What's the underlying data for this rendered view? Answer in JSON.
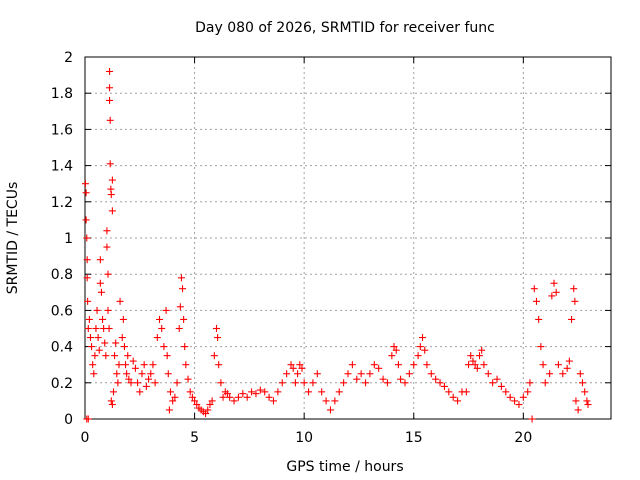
{
  "chart_data": {
    "type": "scatter",
    "title": "Day 080 of 2026, SRMTID for receiver func",
    "xlabel": "GPS time / hours",
    "ylabel": "SRMTID / TECUs",
    "xlim": [
      0,
      24
    ],
    "ylim": [
      0,
      2
    ],
    "xticks": [
      0,
      5,
      10,
      15,
      20
    ],
    "xtick_labels": [
      "0",
      "5",
      "10",
      "15",
      "20"
    ],
    "yticks": [
      0,
      0.2,
      0.4,
      0.6,
      0.8,
      1.0,
      1.2,
      1.4,
      1.6,
      1.8,
      2.0
    ],
    "ytick_labels": [
      "0",
      "0.2",
      "0.4",
      "0.6",
      "0.8",
      "1",
      "1.2",
      "1.4",
      "1.6",
      "1.8",
      "2"
    ],
    "grid": true,
    "marker": "plus",
    "marker_color": "#ff0000",
    "series": [
      {
        "name": "SRMTID",
        "points": [
          [
            0.02,
            1.3
          ],
          [
            0.05,
            1.25
          ],
          [
            0.05,
            1.1
          ],
          [
            0.08,
            1.0
          ],
          [
            0.1,
            0.88
          ],
          [
            0.1,
            0.78
          ],
          [
            0.12,
            0.65
          ],
          [
            0.15,
            0.5
          ],
          [
            0.08,
            0.0
          ],
          [
            0.15,
            0.0
          ],
          [
            0.2,
            0.55
          ],
          [
            0.25,
            0.45
          ],
          [
            0.3,
            0.4
          ],
          [
            0.35,
            0.3
          ],
          [
            0.4,
            0.25
          ],
          [
            0.45,
            0.35
          ],
          [
            0.5,
            0.5
          ],
          [
            0.55,
            0.6
          ],
          [
            0.6,
            0.45
          ],
          [
            0.65,
            0.38
          ],
          [
            0.7,
            0.75
          ],
          [
            0.7,
            0.88
          ],
          [
            0.75,
            0.7
          ],
          [
            0.8,
            0.55
          ],
          [
            0.85,
            0.5
          ],
          [
            0.9,
            0.42
          ],
          [
            0.95,
            0.35
          ],
          [
            1.0,
            0.95
          ],
          [
            1.0,
            1.04
          ],
          [
            1.05,
            0.8
          ],
          [
            1.05,
            0.6
          ],
          [
            1.1,
            0.5
          ],
          [
            1.12,
            1.92
          ],
          [
            1.12,
            1.83
          ],
          [
            1.12,
            1.76
          ],
          [
            1.15,
            1.65
          ],
          [
            1.15,
            1.41
          ],
          [
            1.18,
            1.27
          ],
          [
            1.2,
            1.24
          ],
          [
            1.25,
            1.32
          ],
          [
            1.25,
            1.15
          ],
          [
            1.2,
            0.1
          ],
          [
            1.25,
            0.08
          ],
          [
            1.3,
            0.15
          ],
          [
            1.35,
            0.35
          ],
          [
            1.4,
            0.42
          ],
          [
            1.45,
            0.25
          ],
          [
            1.5,
            0.2
          ],
          [
            1.55,
            0.3
          ],
          [
            1.6,
            0.65
          ],
          [
            1.7,
            0.45
          ],
          [
            1.75,
            0.55
          ],
          [
            1.8,
            0.4
          ],
          [
            1.85,
            0.3
          ],
          [
            1.9,
            0.25
          ],
          [
            1.95,
            0.35
          ],
          [
            2.0,
            0.22
          ],
          [
            2.1,
            0.2
          ],
          [
            2.2,
            0.32
          ],
          [
            2.3,
            0.28
          ],
          [
            2.4,
            0.2
          ],
          [
            2.5,
            0.15
          ],
          [
            2.6,
            0.25
          ],
          [
            2.7,
            0.3
          ],
          [
            2.8,
            0.18
          ],
          [
            2.9,
            0.22
          ],
          [
            3.0,
            0.25
          ],
          [
            3.1,
            0.3
          ],
          [
            3.2,
            0.2
          ],
          [
            3.3,
            0.45
          ],
          [
            3.4,
            0.55
          ],
          [
            3.5,
            0.5
          ],
          [
            3.6,
            0.4
          ],
          [
            3.7,
            0.6
          ],
          [
            3.75,
            0.35
          ],
          [
            3.8,
            0.25
          ],
          [
            3.85,
            0.05
          ],
          [
            3.9,
            0.15
          ],
          [
            4.0,
            0.1
          ],
          [
            4.1,
            0.12
          ],
          [
            4.2,
            0.2
          ],
          [
            4.3,
            0.5
          ],
          [
            4.35,
            0.62
          ],
          [
            4.4,
            0.78
          ],
          [
            4.45,
            0.72
          ],
          [
            4.5,
            0.55
          ],
          [
            4.55,
            0.4
          ],
          [
            4.6,
            0.3
          ],
          [
            4.7,
            0.22
          ],
          [
            4.8,
            0.15
          ],
          [
            4.9,
            0.12
          ],
          [
            5.0,
            0.1
          ],
          [
            5.1,
            0.08
          ],
          [
            5.2,
            0.06
          ],
          [
            5.3,
            0.05
          ],
          [
            5.4,
            0.04
          ],
          [
            5.5,
            0.03
          ],
          [
            5.6,
            0.05
          ],
          [
            5.7,
            0.08
          ],
          [
            5.8,
            0.1
          ],
          [
            5.9,
            0.35
          ],
          [
            6.0,
            0.5
          ],
          [
            6.05,
            0.45
          ],
          [
            6.1,
            0.3
          ],
          [
            6.2,
            0.2
          ],
          [
            6.3,
            0.12
          ],
          [
            6.4,
            0.15
          ],
          [
            6.5,
            0.14
          ],
          [
            6.6,
            0.12
          ],
          [
            6.8,
            0.1
          ],
          [
            7.0,
            0.12
          ],
          [
            7.2,
            0.14
          ],
          [
            7.4,
            0.12
          ],
          [
            7.6,
            0.15
          ],
          [
            7.8,
            0.14
          ],
          [
            8.0,
            0.16
          ],
          [
            8.2,
            0.15
          ],
          [
            8.4,
            0.12
          ],
          [
            8.6,
            0.1
          ],
          [
            8.8,
            0.15
          ],
          [
            9.0,
            0.2
          ],
          [
            9.2,
            0.25
          ],
          [
            9.4,
            0.3
          ],
          [
            9.5,
            0.28
          ],
          [
            9.6,
            0.2
          ],
          [
            9.7,
            0.25
          ],
          [
            9.8,
            0.3
          ],
          [
            9.9,
            0.28
          ],
          [
            10.0,
            0.2
          ],
          [
            10.2,
            0.15
          ],
          [
            10.4,
            0.2
          ],
          [
            10.6,
            0.25
          ],
          [
            10.8,
            0.15
          ],
          [
            11.0,
            0.1
          ],
          [
            11.2,
            0.05
          ],
          [
            11.4,
            0.1
          ],
          [
            11.6,
            0.15
          ],
          [
            11.8,
            0.2
          ],
          [
            12.0,
            0.25
          ],
          [
            12.2,
            0.3
          ],
          [
            12.4,
            0.22
          ],
          [
            12.6,
            0.25
          ],
          [
            12.8,
            0.2
          ],
          [
            13.0,
            0.25
          ],
          [
            13.2,
            0.3
          ],
          [
            13.4,
            0.28
          ],
          [
            13.6,
            0.22
          ],
          [
            13.8,
            0.2
          ],
          [
            14.0,
            0.35
          ],
          [
            14.1,
            0.4
          ],
          [
            14.2,
            0.38
          ],
          [
            14.3,
            0.3
          ],
          [
            14.4,
            0.22
          ],
          [
            14.6,
            0.2
          ],
          [
            14.8,
            0.25
          ],
          [
            15.0,
            0.3
          ],
          [
            15.2,
            0.35
          ],
          [
            15.3,
            0.4
          ],
          [
            15.4,
            0.45
          ],
          [
            15.5,
            0.38
          ],
          [
            15.6,
            0.3
          ],
          [
            15.8,
            0.25
          ],
          [
            16.0,
            0.22
          ],
          [
            16.2,
            0.2
          ],
          [
            16.4,
            0.18
          ],
          [
            16.6,
            0.15
          ],
          [
            16.8,
            0.12
          ],
          [
            17.0,
            0.1
          ],
          [
            17.2,
            0.15
          ],
          [
            17.4,
            0.15
          ],
          [
            17.5,
            0.3
          ],
          [
            17.6,
            0.35
          ],
          [
            17.7,
            0.32
          ],
          [
            17.8,
            0.3
          ],
          [
            17.9,
            0.28
          ],
          [
            18.0,
            0.35
          ],
          [
            18.1,
            0.38
          ],
          [
            18.2,
            0.3
          ],
          [
            18.4,
            0.25
          ],
          [
            18.6,
            0.2
          ],
          [
            18.8,
            0.22
          ],
          [
            19.0,
            0.18
          ],
          [
            19.2,
            0.15
          ],
          [
            19.4,
            0.12
          ],
          [
            19.6,
            0.1
          ],
          [
            19.8,
            0.08
          ],
          [
            20.0,
            0.12
          ],
          [
            20.2,
            0.15
          ],
          [
            20.3,
            0.2
          ],
          [
            20.4,
            0.0
          ],
          [
            20.5,
            0.72
          ],
          [
            20.6,
            0.65
          ],
          [
            20.7,
            0.55
          ],
          [
            20.8,
            0.4
          ],
          [
            20.9,
            0.3
          ],
          [
            21.0,
            0.2
          ],
          [
            21.2,
            0.25
          ],
          [
            21.3,
            0.68
          ],
          [
            21.4,
            0.75
          ],
          [
            21.5,
            0.7
          ],
          [
            21.6,
            0.3
          ],
          [
            21.8,
            0.25
          ],
          [
            22.0,
            0.28
          ],
          [
            22.1,
            0.32
          ],
          [
            22.2,
            0.55
          ],
          [
            22.3,
            0.72
          ],
          [
            22.35,
            0.65
          ],
          [
            22.4,
            0.1
          ],
          [
            22.5,
            0.05
          ],
          [
            22.6,
            0.25
          ],
          [
            22.7,
            0.2
          ],
          [
            22.8,
            0.15
          ],
          [
            22.9,
            0.1
          ],
          [
            22.95,
            0.08
          ]
        ]
      }
    ]
  }
}
